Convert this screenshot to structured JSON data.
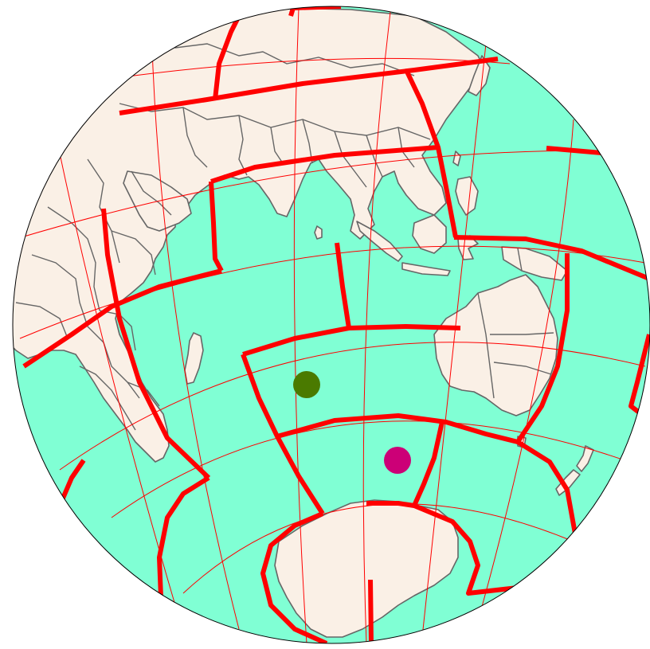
{
  "map": {
    "projection": "orthographic",
    "colors": {
      "ocean": "#80ffd4",
      "land": "#faf0e6",
      "country_border": "#666666",
      "graticule": "#ff0000",
      "plate_boundary": "#ff0000",
      "globe_outline": "#000000"
    },
    "markers": [
      {
        "name": "green-marker",
        "color": "#4a7a00"
      },
      {
        "name": "magenta-marker",
        "color": "#cc0077"
      }
    ]
  }
}
